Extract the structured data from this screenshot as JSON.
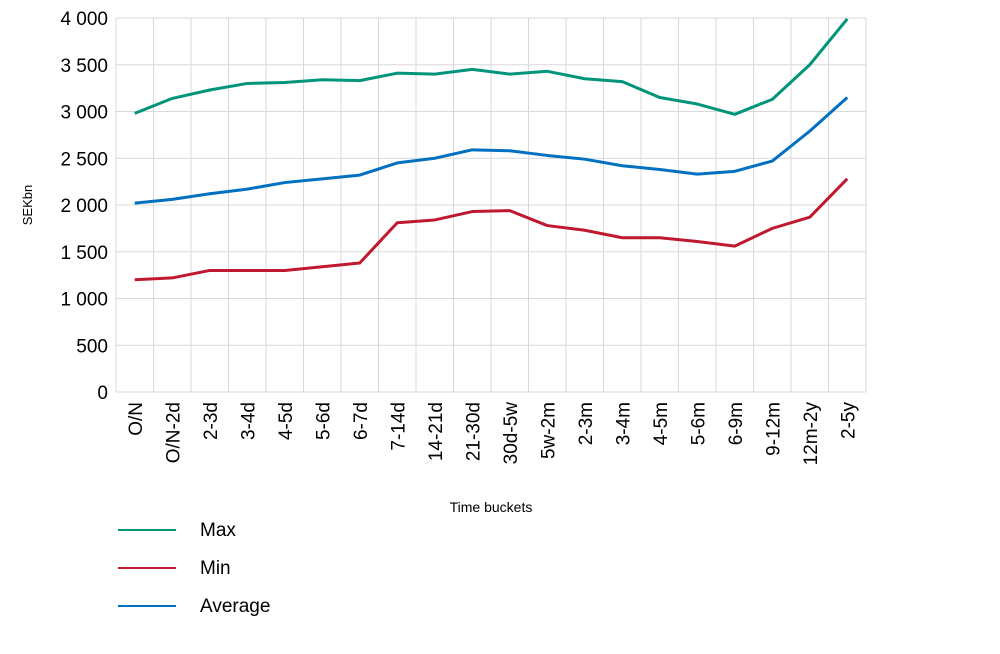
{
  "chart_data": {
    "type": "line",
    "title": "",
    "xlabel": "Time buckets",
    "ylabel": "SEKbn",
    "ylim": [
      0,
      4000
    ],
    "yticks": [
      0,
      500,
      1000,
      1500,
      2000,
      2500,
      3000,
      3500,
      4000
    ],
    "ytick_labels": [
      "0",
      "500",
      "1 000",
      "1 500",
      "2 000",
      "2 500",
      "3 000",
      "3 500",
      "4 000"
    ],
    "grid": true,
    "legend_placement": "bottom-left",
    "categories": [
      "O/N",
      "O/N-2d",
      "2-3d",
      "3-4d",
      "4-5d",
      "5-6d",
      "6-7d",
      "7-14d",
      "14-21d",
      "21-30d",
      "30d-5w",
      "5w-2m",
      "2-3m",
      "3-4m",
      "4-5m",
      "5-6m",
      "6-9m",
      "9-12m",
      "12m-2y",
      "2-5y"
    ],
    "series": [
      {
        "name": "Max",
        "color": "#00957a",
        "values": [
          2980,
          3140,
          3230,
          3300,
          3310,
          3340,
          3330,
          3410,
          3400,
          3450,
          3400,
          3430,
          3350,
          3320,
          3150,
          3080,
          2970,
          3130,
          3500,
          3990
        ]
      },
      {
        "name": "Min",
        "color": "#c0182e",
        "values": [
          1200,
          1220,
          1300,
          1300,
          1300,
          1340,
          1380,
          1810,
          1840,
          1930,
          1940,
          1780,
          1730,
          1650,
          1650,
          1610,
          1560,
          1750,
          1870,
          2280
        ]
      },
      {
        "name": "Average",
        "color": "#0070c0",
        "values": [
          2020,
          2060,
          2120,
          2170,
          2240,
          2280,
          2320,
          2450,
          2500,
          2590,
          2580,
          2530,
          2490,
          2420,
          2380,
          2330,
          2360,
          2470,
          2790,
          3150
        ]
      }
    ]
  }
}
